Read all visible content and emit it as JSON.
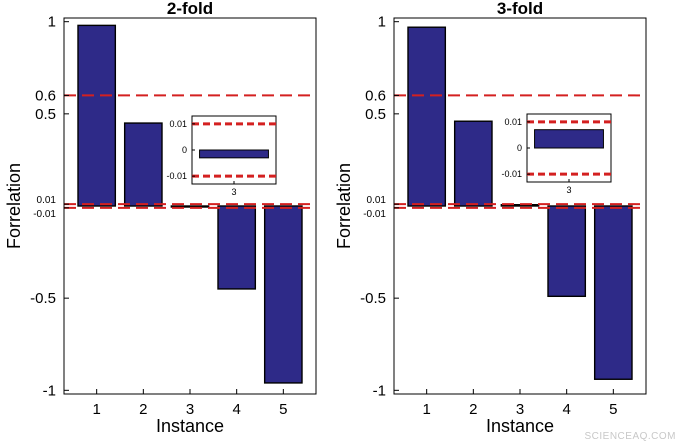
{
  "watermark": "SCIENCEAQ.COM",
  "chart_data": [
    {
      "type": "bar",
      "title": "2-fold",
      "xlabel": "Instance",
      "ylabel": "Forrelation",
      "categories": [
        "1",
        "2",
        "3",
        "4",
        "5"
      ],
      "values": [
        0.98,
        0.45,
        -0.003,
        -0.45,
        -0.96
      ],
      "ylim": [
        -1.02,
        1.02
      ],
      "yticks": [
        {
          "value": 1,
          "label": "1"
        },
        {
          "value": 0.6,
          "label": "0.6"
        },
        {
          "value": 0.5,
          "label": "0.5"
        },
        {
          "value": 0.01,
          "label": "0.01"
        },
        {
          "value": -0.01,
          "label": "-0.01"
        },
        {
          "value": -0.5,
          "label": "-0.5"
        },
        {
          "value": -1,
          "label": "-1"
        }
      ],
      "thresholds": [
        0.6,
        0.01,
        -0.01
      ],
      "bar_color": "#2e2a88",
      "threshold_color": "#d42020",
      "grid": false,
      "inset": {
        "category": "3",
        "value": -0.003,
        "ylim": [
          -0.013,
          0.013
        ],
        "yticks": [
          {
            "value": 0.01,
            "label": "0.01"
          },
          {
            "value": 0,
            "label": "0"
          },
          {
            "value": -0.01,
            "label": "-0.01"
          }
        ],
        "xtick": "3",
        "thresholds": [
          0.01,
          -0.01
        ]
      }
    },
    {
      "type": "bar",
      "title": "3-fold",
      "xlabel": "Instance",
      "ylabel": "Forrelation",
      "categories": [
        "1",
        "2",
        "3",
        "4",
        "5"
      ],
      "values": [
        0.97,
        0.46,
        0.007,
        -0.49,
        -0.94
      ],
      "ylim": [
        -1.02,
        1.02
      ],
      "yticks": [
        {
          "value": 1,
          "label": "1"
        },
        {
          "value": 0.6,
          "label": "0.6"
        },
        {
          "value": 0.5,
          "label": "0.5"
        },
        {
          "value": 0.01,
          "label": "0.01"
        },
        {
          "value": -0.01,
          "label": "-0.01"
        },
        {
          "value": -0.5,
          "label": "-0.5"
        },
        {
          "value": -1,
          "label": "-1"
        }
      ],
      "thresholds": [
        0.6,
        0.01,
        -0.01
      ],
      "bar_color": "#2e2a88",
      "threshold_color": "#d42020",
      "grid": false,
      "inset": {
        "category": "3",
        "value": 0.007,
        "ylim": [
          -0.013,
          0.013
        ],
        "yticks": [
          {
            "value": 0.01,
            "label": "0.01"
          },
          {
            "value": 0,
            "label": "0"
          },
          {
            "value": -0.01,
            "label": "-0.01"
          }
        ],
        "xtick": "3",
        "thresholds": [
          0.01,
          -0.01
        ]
      }
    }
  ]
}
